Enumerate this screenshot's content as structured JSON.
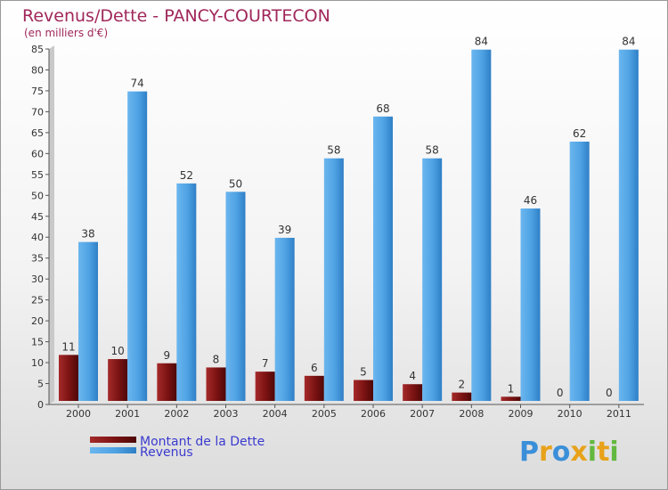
{
  "chart_data": {
    "type": "bar",
    "title": "Revenus/Dette - PANCY-COURTECON",
    "subtitle": "(en milliers d'€)",
    "categories": [
      "2000",
      "2001",
      "2002",
      "2003",
      "2004",
      "2005",
      "2006",
      "2007",
      "2008",
      "2009",
      "2010",
      "2011"
    ],
    "series": [
      {
        "name": "Montant de la Dette",
        "color": "#8b1a1a",
        "values": [
          11,
          10,
          9,
          8,
          7,
          6,
          5,
          4,
          2,
          1,
          0,
          0
        ]
      },
      {
        "name": "Revenus",
        "color": "#4fa3e6",
        "values": [
          38,
          74,
          52,
          50,
          39,
          58,
          68,
          58,
          84,
          46,
          62,
          84
        ]
      }
    ],
    "ylim": [
      0,
      85
    ],
    "yticks": [
      0,
      5,
      10,
      15,
      20,
      25,
      30,
      35,
      40,
      45,
      50,
      55,
      60,
      65,
      70,
      75,
      80,
      85
    ],
    "grid": false,
    "legend": "bottom-left"
  },
  "logo": {
    "letters": [
      "P",
      "r",
      "o",
      "x",
      "i",
      "t",
      "i"
    ],
    "colors": [
      "#3b8fd9",
      "#e8a21a",
      "#3b8fd9",
      "#e8a21a",
      "#63b83f",
      "#e8a21a",
      "#63b83f"
    ]
  }
}
